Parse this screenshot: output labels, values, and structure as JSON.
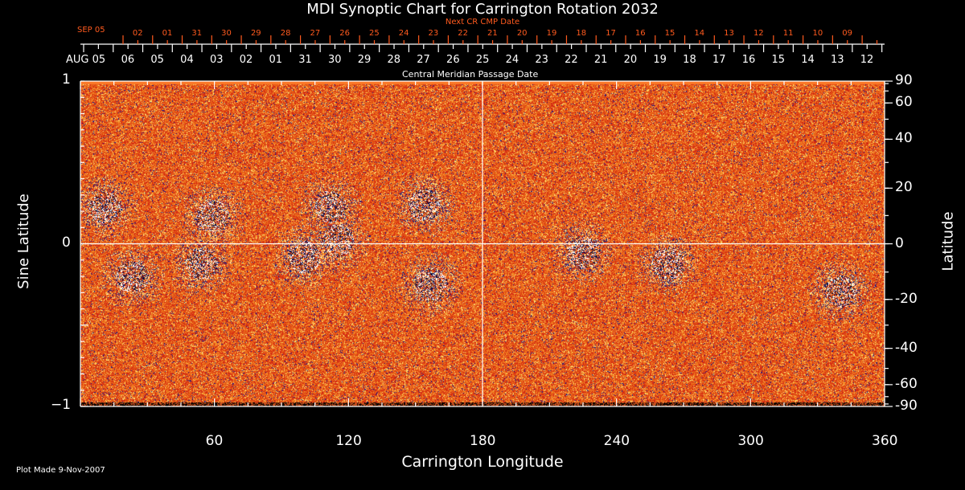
{
  "title": "MDI Synoptic Chart for Carrington Rotation 2032",
  "footer": "Plot Made  9-Nov-2007",
  "colors": {
    "background": "#000000",
    "axis": "#ffffff",
    "next_cr": "#ff5a1e"
  },
  "chart_data": {
    "type": "heatmap",
    "title": "MDI Synoptic Chart for Carrington Rotation 2032",
    "xlabel": "Carrington Longitude",
    "ylabel": "Sine Latitude",
    "ylabel_right": "Latitude",
    "xlim": [
      0,
      360
    ],
    "ylim": [
      -1,
      1
    ],
    "x_ticks": [
      "60",
      "120",
      "180",
      "240",
      "300",
      "360"
    ],
    "y_ticks": [
      "1",
      "0",
      "−1"
    ],
    "right_ticks": [
      "90",
      "60",
      "40",
      "20",
      "0",
      "-20",
      "-40",
      "-60",
      "-90"
    ],
    "top_axis_label": "Central Meridian Passage Date",
    "top_axis_start": "AUG 05",
    "top_axis_dates": [
      "06",
      "05",
      "04",
      "03",
      "02",
      "01",
      "31",
      "30",
      "29",
      "28",
      "27",
      "26",
      "25",
      "24",
      "23",
      "22",
      "21",
      "20",
      "19",
      "18",
      "17",
      "16",
      "15",
      "14",
      "13",
      "12"
    ],
    "next_axis_label": "Next CR CMP Date",
    "next_axis_start": "SEP 05",
    "next_axis_dates": [
      "02",
      "01",
      "31",
      "30",
      "29",
      "28",
      "27",
      "26",
      "25",
      "24",
      "23",
      "22",
      "21",
      "20",
      "19",
      "18",
      "17",
      "16",
      "15",
      "14",
      "13",
      "12",
      "11",
      "10",
      "09"
    ],
    "reference_lines": {
      "longitude": 180,
      "sine_latitude": 0
    },
    "active_regions": [
      {
        "lon": 11,
        "sinlat": 0.22
      },
      {
        "lon": 59,
        "sinlat": 0.17
      },
      {
        "lon": 112,
        "sinlat": 0.23
      },
      {
        "lon": 154,
        "sinlat": 0.24
      },
      {
        "lon": 23,
        "sinlat": -0.2
      },
      {
        "lon": 54,
        "sinlat": -0.12
      },
      {
        "lon": 115,
        "sinlat": 0.02
      },
      {
        "lon": 157,
        "sinlat": -0.25
      },
      {
        "lon": 263,
        "sinlat": -0.12
      },
      {
        "lon": 340,
        "sinlat": -0.29
      },
      {
        "lon": 100,
        "sinlat": -0.08
      },
      {
        "lon": 225,
        "sinlat": -0.05
      }
    ]
  }
}
